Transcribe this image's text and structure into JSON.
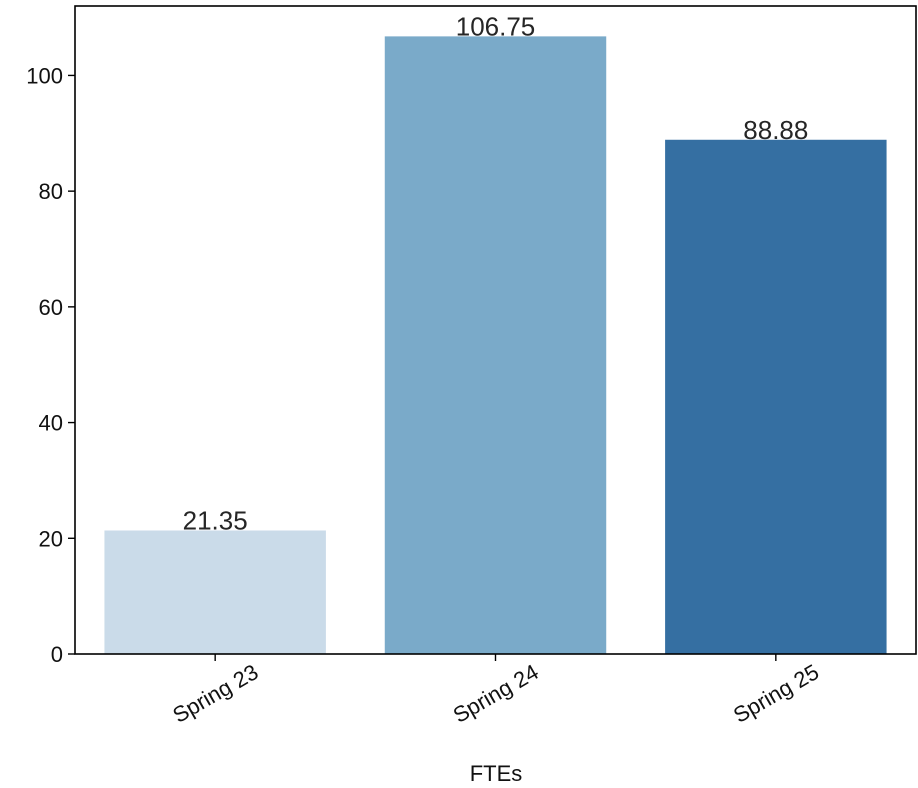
{
  "chart_data": {
    "type": "bar",
    "categories": [
      "Spring 23",
      "Spring 24",
      "Spring 25"
    ],
    "values": [
      21.35,
      106.75,
      88.88
    ],
    "data_labels": [
      "21.35",
      "106.75",
      "88.88"
    ],
    "colors": [
      "#cadbe9",
      "#7aaac9",
      "#356fa2"
    ],
    "title": "",
    "xlabel": "FTEs",
    "ylabel": "",
    "ylim": [
      0,
      112
    ],
    "yticks": [
      0,
      20,
      40,
      60,
      80,
      100
    ],
    "grid": false,
    "legend": "none"
  }
}
